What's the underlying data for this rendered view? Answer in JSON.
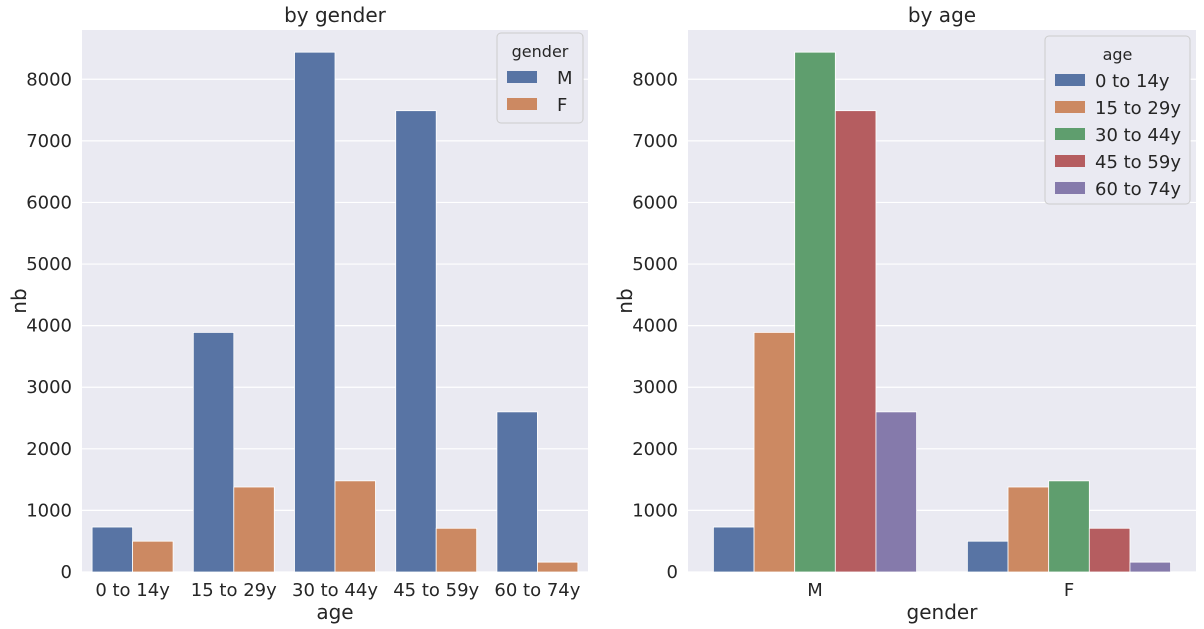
{
  "chart_data": [
    {
      "type": "bar",
      "title": "by gender",
      "xlabel": "age",
      "ylabel": "nb",
      "categories": [
        "0 to 14y",
        "15 to 29y",
        "30 to 44y",
        "45 to 59y",
        "60 to 74y"
      ],
      "series": [
        {
          "name": "M",
          "values": [
            730,
            3890,
            8440,
            7490,
            2600
          ],
          "color": "#5874a4"
        },
        {
          "name": "F",
          "values": [
            500,
            1380,
            1480,
            710,
            160
          ],
          "color": "#cc8962"
        }
      ],
      "ylim": [
        0,
        8800
      ],
      "yticks": [
        0,
        1000,
        2000,
        3000,
        4000,
        5000,
        6000,
        7000,
        8000
      ],
      "legend": {
        "title": "gender",
        "placement": "top-right"
      },
      "grid": true,
      "background": "#eaeaf2"
    },
    {
      "type": "bar",
      "title": "by age",
      "xlabel": "gender",
      "ylabel": "nb",
      "categories": [
        "M",
        "F"
      ],
      "series": [
        {
          "name": "0 to 14y",
          "values": [
            730,
            500
          ],
          "color": "#5874a4"
        },
        {
          "name": "15 to 29y",
          "values": [
            3890,
            1380
          ],
          "color": "#cc8962"
        },
        {
          "name": "30 to 44y",
          "values": [
            8440,
            1480
          ],
          "color": "#5f9e6e"
        },
        {
          "name": "45 to 59y",
          "values": [
            7490,
            710
          ],
          "color": "#b55d60"
        },
        {
          "name": "60 to 74y",
          "values": [
            2600,
            160
          ],
          "color": "#857aab"
        }
      ],
      "ylim": [
        0,
        8800
      ],
      "yticks": [
        0,
        1000,
        2000,
        3000,
        4000,
        5000,
        6000,
        7000,
        8000
      ],
      "legend": {
        "title": "age",
        "placement": "top-right"
      },
      "grid": true,
      "background": "#eaeaf2"
    }
  ]
}
